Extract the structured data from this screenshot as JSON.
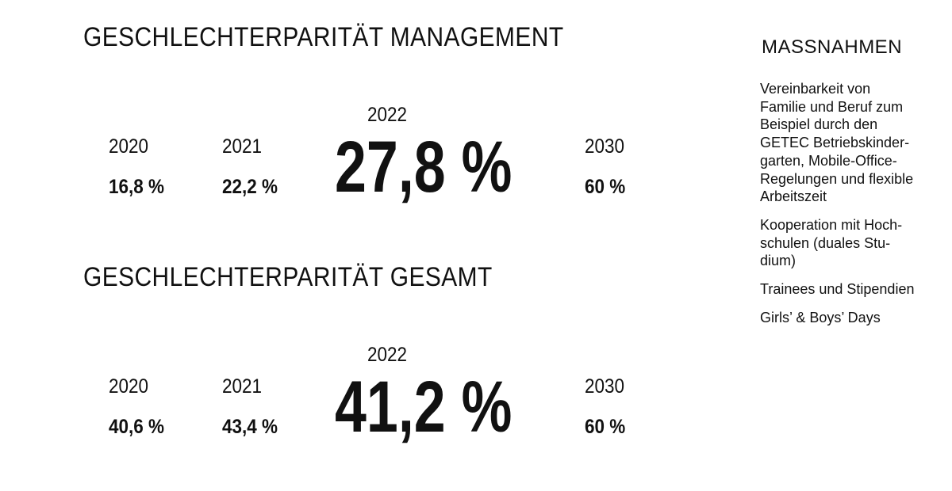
{
  "sections": [
    {
      "title": "GESCHLECHTERPARITÄT MANAGEMENT",
      "items": [
        {
          "year": "2020",
          "value": "16,8 %"
        },
        {
          "year": "2021",
          "value": "22,2 %"
        },
        {
          "year": "2022",
          "value": "27,8 %"
        },
        {
          "year": "2030",
          "value": "60 %"
        }
      ]
    },
    {
      "title": "GESCHLECHTERPARITÄT GESAMT",
      "items": [
        {
          "year": "2020",
          "value": "40,6 %"
        },
        {
          "year": "2021",
          "value": "43,4 %"
        },
        {
          "year": "2022",
          "value": "41,2 %"
        },
        {
          "year": "2030",
          "value": "60 %"
        }
      ]
    }
  ],
  "measures": {
    "title": "MASSNAHMEN",
    "items": [
      [
        "Vereinbarkeit von",
        "Familie und Beruf zum",
        "Beispiel durch den",
        "GETEC Betriebskinder-",
        "garten, Mobile-Office-",
        "Regelungen und flexible",
        "Arbeitszeit"
      ],
      [
        "Kooperation mit Hoch-",
        "schulen (duales Stu-",
        "dium)"
      ],
      [
        "Trainees und Stipendien"
      ],
      [
        "Girls’ & Boys’ Days"
      ]
    ]
  }
}
